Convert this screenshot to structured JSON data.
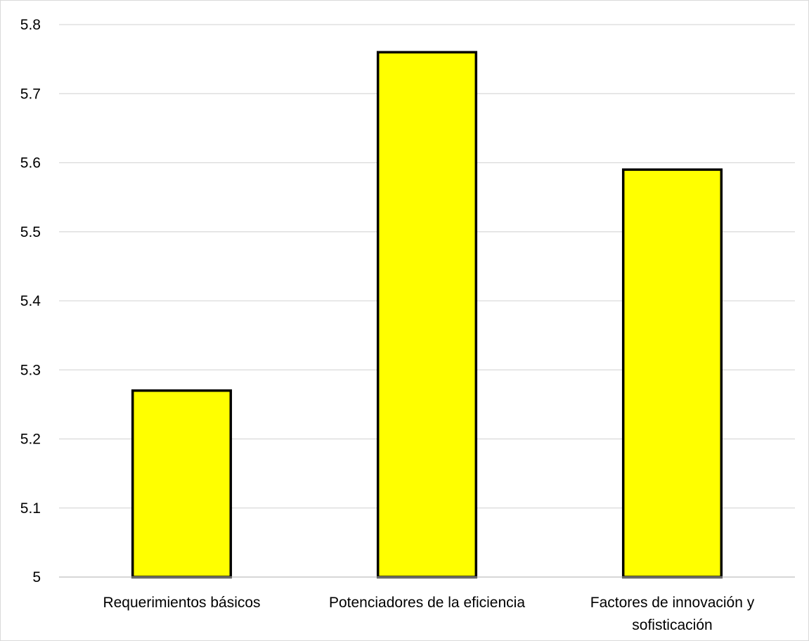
{
  "chart_data": {
    "type": "bar",
    "title": "",
    "xlabel": "",
    "ylabel": "",
    "categories": [
      [
        "Requerimientos básicos"
      ],
      [
        "Potenciadores de la eficiencia"
      ],
      [
        "Factores de innovación y",
        "sofisticación"
      ]
    ],
    "values": [
      5.27,
      5.76,
      5.59
    ],
    "ylim": [
      5,
      5.8
    ],
    "yticks": [
      "5",
      "5.1",
      "5.2",
      "5.3",
      "5.4",
      "5.5",
      "5.6",
      "5.7",
      "5.8"
    ],
    "grid": true,
    "legend": "none",
    "colors": {
      "bar_fill": "#ffff00",
      "bar_stroke": "#000000",
      "grid": "#d9d9d9",
      "axis": "#bfbfbf"
    }
  }
}
